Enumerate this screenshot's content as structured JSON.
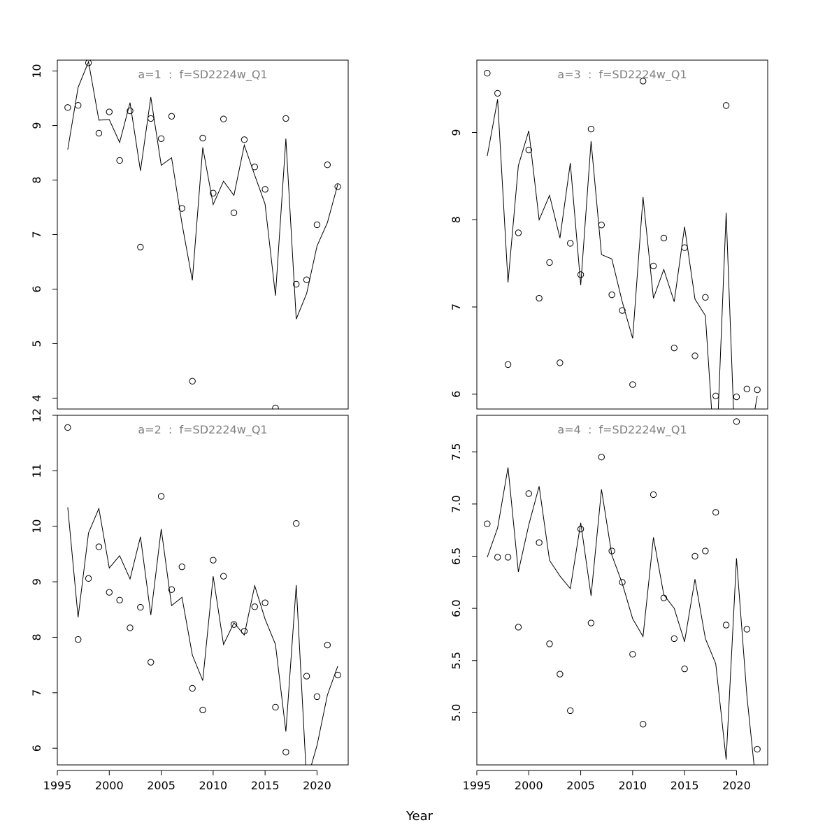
{
  "figure": {
    "xlabel": "Year"
  },
  "chart_data": [
    {
      "type": "scatter",
      "title": "a=1  :  f=SD2224w_Q1",
      "xlabel": "",
      "ylabel": "",
      "xlim": [
        1995,
        2023
      ],
      "ylim": [
        3.8,
        10.2
      ],
      "xticks": [
        1995,
        2000,
        2005,
        2010,
        2015,
        2020
      ],
      "yticks": [
        "4",
        "5",
        "6",
        "7",
        "8",
        "9",
        "10"
      ],
      "show_xticks": false,
      "grid": false,
      "series": [
        {
          "kind": "points",
          "x": [
            1996,
            1997,
            1998,
            1999,
            2000,
            2001,
            2002,
            2003,
            2004,
            2005,
            2006,
            2007,
            2008,
            2009,
            2010,
            2011,
            2012,
            2013,
            2014,
            2015,
            2016,
            2017,
            2018,
            2019,
            2020,
            2021,
            2022
          ],
          "y": [
            9.33,
            9.37,
            10.15,
            8.86,
            9.25,
            8.36,
            9.27,
            6.77,
            9.13,
            8.76,
            9.17,
            7.48,
            4.31,
            8.77,
            7.76,
            9.12,
            7.4,
            8.74,
            8.24,
            7.83,
            3.82,
            9.13,
            6.09,
            6.17,
            7.18,
            8.28,
            7.88
          ]
        },
        {
          "kind": "line",
          "x": [
            1996,
            1997,
            1998,
            1999,
            2000,
            2001,
            2002,
            2003,
            2004,
            2005,
            2006,
            2007,
            2008,
            2009,
            2010,
            2011,
            2012,
            2013,
            2014,
            2015,
            2016,
            2017,
            2018,
            2019,
            2020,
            2021,
            2022
          ],
          "y": [
            8.56,
            9.7,
            10.17,
            9.1,
            9.11,
            8.69,
            9.42,
            8.17,
            9.52,
            8.27,
            8.41,
            7.2,
            6.16,
            8.6,
            7.55,
            7.98,
            7.72,
            8.64,
            8.09,
            7.56,
            5.88,
            8.76,
            5.45,
            5.92,
            6.79,
            7.22,
            7.92
          ]
        }
      ]
    },
    {
      "type": "scatter",
      "title": "a=3  :  f=SD2224w_Q1",
      "xlabel": "",
      "ylabel": "",
      "xlim": [
        1995,
        2023
      ],
      "ylim": [
        5.83,
        9.83
      ],
      "xticks": [
        1995,
        2000,
        2005,
        2010,
        2015,
        2020
      ],
      "yticks": [
        "6",
        "7",
        "8",
        "9"
      ],
      "show_xticks": false,
      "grid": false,
      "series": [
        {
          "kind": "points",
          "x": [
            1996,
            1997,
            1998,
            1999,
            2000,
            2001,
            2002,
            2003,
            2004,
            2005,
            2006,
            2007,
            2008,
            2009,
            2010,
            2011,
            2012,
            2013,
            2014,
            2015,
            2016,
            2017,
            2018,
            2019,
            2020,
            2021,
            2022
          ],
          "y": [
            9.68,
            9.45,
            6.34,
            7.85,
            8.8,
            7.1,
            7.51,
            6.36,
            7.73,
            7.37,
            9.04,
            7.94,
            7.14,
            6.96,
            6.11,
            9.59,
            7.47,
            7.79,
            6.53,
            7.68,
            6.44,
            7.11,
            5.98,
            9.31,
            5.97,
            6.06,
            6.05
          ]
        },
        {
          "kind": "line",
          "x": [
            1996,
            1997,
            1998,
            1999,
            2000,
            2001,
            2002,
            2003,
            2004,
            2005,
            2006,
            2007,
            2008,
            2009,
            2010,
            2011,
            2012,
            2013,
            2014,
            2015,
            2016,
            2017,
            2018,
            2019,
            2020,
            2021,
            2022
          ],
          "y": [
            8.73,
            9.38,
            7.28,
            8.62,
            9.02,
            8.0,
            8.28,
            7.79,
            8.65,
            7.25,
            8.9,
            7.6,
            7.55,
            7.06,
            6.64,
            8.26,
            7.1,
            7.43,
            7.06,
            7.92,
            7.09,
            6.9,
            5.1,
            8.08,
            4.9,
            5.3,
            5.98
          ]
        }
      ]
    },
    {
      "type": "scatter",
      "title": "a=2  :  f=SD2224w_Q1",
      "xlabel": "",
      "ylabel": "",
      "xlim": [
        1995,
        2023
      ],
      "ylim": [
        5.7,
        12.0
      ],
      "xticks": [
        1995,
        2000,
        2005,
        2010,
        2015,
        2020
      ],
      "yticks": [
        "6",
        "7",
        "8",
        "9",
        "10",
        "11",
        "12"
      ],
      "show_xticks": true,
      "grid": false,
      "series": [
        {
          "kind": "points",
          "x": [
            1996,
            1997,
            1998,
            1999,
            2000,
            2001,
            2002,
            2003,
            2004,
            2005,
            2006,
            2007,
            2008,
            2009,
            2010,
            2011,
            2012,
            2013,
            2014,
            2015,
            2016,
            2017,
            2018,
            2019,
            2020,
            2021,
            2022
          ],
          "y": [
            11.78,
            7.96,
            9.06,
            9.63,
            8.81,
            8.67,
            8.17,
            8.54,
            7.55,
            10.54,
            8.86,
            9.27,
            7.08,
            6.69,
            9.39,
            9.1,
            8.23,
            8.11,
            8.55,
            8.62,
            6.74,
            5.93,
            10.05,
            7.3,
            6.93,
            7.86,
            7.32
          ]
        },
        {
          "kind": "line",
          "x": [
            1996,
            1997,
            1998,
            1999,
            2000,
            2001,
            2002,
            2003,
            2004,
            2005,
            2006,
            2007,
            2008,
            2009,
            2010,
            2011,
            2012,
            2013,
            2014,
            2015,
            2016,
            2017,
            2018,
            2019,
            2020,
            2021,
            2022
          ],
          "y": [
            10.34,
            8.36,
            9.88,
            10.32,
            9.25,
            9.47,
            9.05,
            9.81,
            8.4,
            9.95,
            8.57,
            8.72,
            7.68,
            7.22,
            9.1,
            7.87,
            8.26,
            8.04,
            8.93,
            8.33,
            7.87,
            6.3,
            8.94,
            5.4,
            6.05,
            6.96,
            7.48
          ]
        }
      ]
    },
    {
      "type": "scatter",
      "title": "a=4  :  f=SD2224w_Q1",
      "xlabel": "",
      "ylabel": "",
      "xlim": [
        1995,
        2023
      ],
      "ylim": [
        4.5,
        7.85
      ],
      "xticks": [
        1995,
        2000,
        2005,
        2010,
        2015,
        2020
      ],
      "yticks": [
        "5.0",
        "5.5",
        "6.0",
        "6.5",
        "7.0",
        "7.5"
      ],
      "show_xticks": true,
      "grid": false,
      "series": [
        {
          "kind": "points",
          "x": [
            1996,
            1997,
            1998,
            1999,
            2000,
            2001,
            2002,
            2003,
            2004,
            2005,
            2006,
            2007,
            2008,
            2009,
            2010,
            2011,
            2012,
            2013,
            2014,
            2015,
            2016,
            2017,
            2018,
            2019,
            2020,
            2021,
            2022
          ],
          "y": [
            6.81,
            6.49,
            6.49,
            5.82,
            7.1,
            6.63,
            5.66,
            5.37,
            5.02,
            6.76,
            5.86,
            7.45,
            6.55,
            6.25,
            5.56,
            4.89,
            7.09,
            6.1,
            5.71,
            5.42,
            6.5,
            6.55,
            6.92,
            5.84,
            7.79,
            5.8,
            4.65
          ]
        },
        {
          "kind": "line",
          "x": [
            1996,
            1997,
            1998,
            1999,
            2000,
            2001,
            2002,
            2003,
            2004,
            2005,
            2006,
            2007,
            2008,
            2009,
            2010,
            2011,
            2012,
            2013,
            2014,
            2015,
            2016,
            2017,
            2018,
            2019,
            2020,
            2021,
            2022
          ],
          "y": [
            6.49,
            6.77,
            7.35,
            6.35,
            6.8,
            7.17,
            6.46,
            6.31,
            6.19,
            6.82,
            6.12,
            7.14,
            6.51,
            6.24,
            5.9,
            5.73,
            6.68,
            6.13,
            6.0,
            5.68,
            6.28,
            5.71,
            5.47,
            4.55,
            6.48,
            5.16,
            4.2
          ]
        }
      ]
    }
  ]
}
